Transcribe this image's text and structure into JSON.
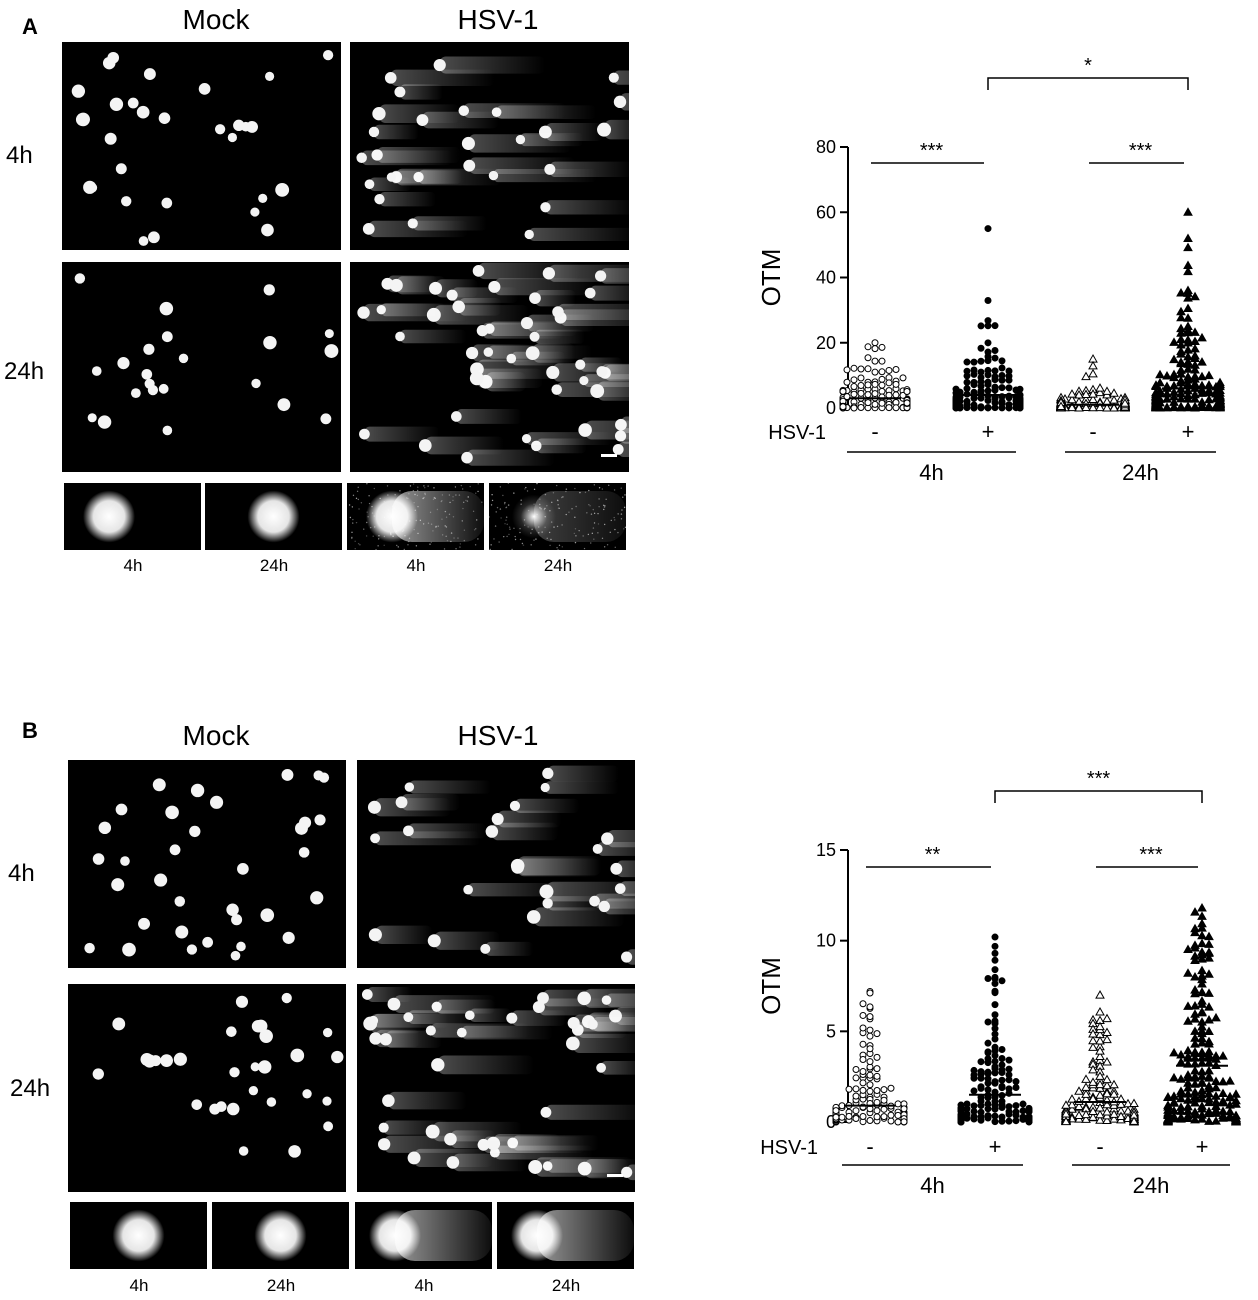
{
  "figure": {
    "panels": [
      {
        "letter": "A",
        "col_headers": [
          "Mock",
          "HSV-1"
        ],
        "row_headers": [
          "4h",
          "24h"
        ],
        "thumb_labels": [
          "4h",
          "24h",
          "4h",
          "24h"
        ]
      },
      {
        "letter": "B",
        "col_headers": [
          "Mock",
          "HSV-1"
        ],
        "row_headers": [
          "4h",
          "24h"
        ],
        "thumb_labels": [
          "4h",
          "24h",
          "4h",
          "24h"
        ]
      }
    ]
  },
  "chart_data": [
    {
      "type": "scatter",
      "panel": "A",
      "ylabel": "OTM",
      "ylim": [
        0,
        80
      ],
      "yticks": [
        "0",
        "20",
        "40",
        "60",
        "80"
      ],
      "treatment_label": "HSV-1",
      "treatment_marks": [
        "-",
        "+",
        "-",
        "+"
      ],
      "groups": [
        "4h",
        "24h"
      ],
      "series": [
        {
          "group": "4h",
          "hsv": "-",
          "marker": "open-circle",
          "median": 3,
          "max": 20,
          "n": 150
        },
        {
          "group": "4h",
          "hsv": "+",
          "marker": "filled-circle",
          "median": 4,
          "max": 55,
          "n": 150
        },
        {
          "group": "24h",
          "hsv": "-",
          "marker": "open-triangle",
          "median": 1,
          "max": 15,
          "n": 150
        },
        {
          "group": "24h",
          "hsv": "+",
          "marker": "filled-triangle",
          "median": 6,
          "max": 60,
          "n": 190
        }
      ],
      "significance": [
        {
          "from": 0,
          "to": 1,
          "label": "***"
        },
        {
          "from": 2,
          "to": 3,
          "label": "***"
        },
        {
          "from": 1,
          "to": 3,
          "label": "*"
        }
      ]
    },
    {
      "type": "scatter",
      "panel": "B",
      "ylabel": "OTM",
      "ylim": [
        0,
        15
      ],
      "yticks": [
        "0",
        "5",
        "10",
        "15"
      ],
      "treatment_label": "HSV-1",
      "treatment_marks": [
        "-",
        "+",
        "-",
        "+"
      ],
      "groups": [
        "4h",
        "24h"
      ],
      "series": [
        {
          "group": "4h",
          "hsv": "-",
          "marker": "open-circle",
          "median": 0.9,
          "max": 7.2,
          "n": 150
        },
        {
          "group": "4h",
          "hsv": "+",
          "marker": "filled-circle",
          "median": 1.5,
          "max": 10.2,
          "n": 160
        },
        {
          "group": "24h",
          "hsv": "-",
          "marker": "open-triangle",
          "median": 1.1,
          "max": 7.0,
          "n": 150
        },
        {
          "group": "24h",
          "hsv": "+",
          "marker": "filled-triangle",
          "median": 3.1,
          "max": 11.8,
          "n": 200
        }
      ],
      "significance": [
        {
          "from": 0,
          "to": 1,
          "label": "**"
        },
        {
          "from": 2,
          "to": 3,
          "label": "***"
        },
        {
          "from": 1,
          "to": 3,
          "label": "***"
        }
      ]
    }
  ]
}
